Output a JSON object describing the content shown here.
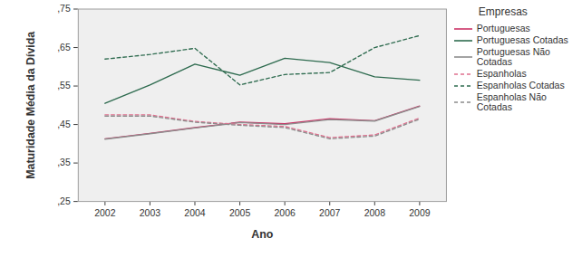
{
  "chart_data": {
    "type": "line",
    "x_label": "Ano",
    "y_label": "Maturidade Média da Dívida",
    "x": [
      2002,
      2003,
      2004,
      2005,
      2006,
      2007,
      2008,
      2009
    ],
    "ylim": [
      0.25,
      0.75
    ],
    "yticks": [
      {
        "value": 0.25,
        "label": ",25"
      },
      {
        "value": 0.35,
        "label": ",35"
      },
      {
        "value": 0.45,
        "label": ",45"
      },
      {
        "value": 0.55,
        "label": ",55"
      },
      {
        "value": 0.65,
        "label": ",65"
      },
      {
        "value": 0.75,
        "label": ",75"
      }
    ],
    "grid": false,
    "legend": "right",
    "legend_title": "Empresas",
    "series": [
      {
        "name": "Portuguesas",
        "color": "#cc3366",
        "line_style": "solid",
        "values": [
          0.413,
          0.427,
          0.442,
          0.456,
          0.452,
          0.465,
          0.46,
          0.498
        ]
      },
      {
        "name": "Portuguesas Cotadas",
        "color": "#2e6b4f",
        "line_style": "solid",
        "values": [
          0.505,
          0.553,
          0.607,
          0.578,
          0.622,
          0.611,
          0.574,
          0.565
        ]
      },
      {
        "name": "Portuguesas Não Cotadas",
        "color": "#8c8c8c",
        "line_style": "solid",
        "values": [
          0.412,
          0.426,
          0.441,
          0.455,
          0.45,
          0.463,
          0.459,
          0.497
        ]
      },
      {
        "name": "Espanholas",
        "color": "#e0708f",
        "line_style": "dashed",
        "values": [
          0.475,
          0.475,
          0.458,
          0.45,
          0.445,
          0.416,
          0.423,
          0.467
        ]
      },
      {
        "name": "Espanholas Cotadas",
        "color": "#2e6b4f",
        "line_style": "dashed",
        "values": [
          0.62,
          0.632,
          0.648,
          0.553,
          0.58,
          0.585,
          0.65,
          0.681
        ]
      },
      {
        "name": "Espanholas Não Cotadas",
        "color": "#8c8c8c",
        "line_style": "dashed",
        "values": [
          0.472,
          0.472,
          0.456,
          0.448,
          0.442,
          0.413,
          0.42,
          0.464
        ]
      }
    ]
  }
}
